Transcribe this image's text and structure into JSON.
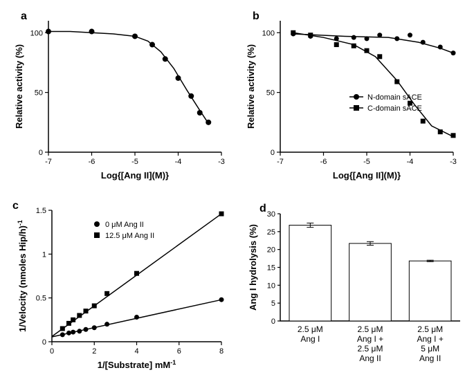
{
  "panel_a": {
    "letter": "a",
    "type": "scatter-line",
    "xlabel": "Log{[Ang II](M)}",
    "ylabel": "Relative activity (%)",
    "xlim": [
      -7,
      -3
    ],
    "ylim": [
      0,
      110
    ],
    "xticks": [
      -7,
      -6,
      -5,
      -4,
      -3
    ],
    "yticks": [
      0,
      50,
      100
    ],
    "series": [
      {
        "marker": "circle",
        "color": "#000000",
        "points": [
          [
            -7,
            101
          ],
          [
            -6,
            101
          ],
          [
            -5,
            97
          ],
          [
            -4.6,
            90
          ],
          [
            -4.3,
            78
          ],
          [
            -4.0,
            62
          ],
          [
            -3.7,
            47
          ],
          [
            -3.5,
            33
          ],
          [
            -3.3,
            25
          ]
        ]
      }
    ],
    "curve": [
      [
        -7,
        101
      ],
      [
        -6.5,
        101
      ],
      [
        -6,
        100
      ],
      [
        -5.5,
        99
      ],
      [
        -5,
        97
      ],
      [
        -4.7,
        93
      ],
      [
        -4.4,
        84
      ],
      [
        -4.1,
        70
      ],
      [
        -3.8,
        52
      ],
      [
        -3.5,
        35
      ],
      [
        -3.3,
        24
      ]
    ]
  },
  "panel_b": {
    "letter": "b",
    "type": "scatter-line",
    "xlabel": "Log{[Ang II](M)}",
    "ylabel": "Relative activity (%)",
    "xlim": [
      -7,
      -3
    ],
    "ylim": [
      0,
      110
    ],
    "xticks": [
      -7,
      -6,
      -5,
      -4,
      -3
    ],
    "yticks": [
      0,
      50,
      100
    ],
    "legend": [
      {
        "marker": "circle",
        "label": "N-domain sACE"
      },
      {
        "marker": "square",
        "label": "C-domain sACE"
      }
    ],
    "series_n": {
      "marker": "circle",
      "color": "#000000",
      "points": [
        [
          -6.7,
          99
        ],
        [
          -6.3,
          97
        ],
        [
          -5.7,
          95
        ],
        [
          -5.3,
          96
        ],
        [
          -5.0,
          95
        ],
        [
          -4.7,
          98
        ],
        [
          -4.3,
          95
        ],
        [
          -4.0,
          98
        ],
        [
          -3.7,
          92
        ],
        [
          -3.3,
          88
        ],
        [
          -3.0,
          83
        ]
      ]
    },
    "series_c": {
      "marker": "square",
      "color": "#000000",
      "points": [
        [
          -6.7,
          100
        ],
        [
          -6.3,
          98
        ],
        [
          -5.7,
          90
        ],
        [
          -5.3,
          89
        ],
        [
          -5.0,
          85
        ],
        [
          -4.7,
          80
        ],
        [
          -4.3,
          59
        ],
        [
          -4.0,
          41
        ],
        [
          -3.7,
          26
        ],
        [
          -3.3,
          17
        ],
        [
          -3.0,
          14
        ]
      ]
    },
    "curve_n": [
      [
        -6.7,
        99
      ],
      [
        -5.5,
        97
      ],
      [
        -4.5,
        96
      ],
      [
        -3.8,
        92
      ],
      [
        -3.3,
        87
      ],
      [
        -3.0,
        83
      ]
    ],
    "curve_c": [
      [
        -6.7,
        100
      ],
      [
        -6.0,
        96
      ],
      [
        -5.3,
        90
      ],
      [
        -4.8,
        80
      ],
      [
        -4.3,
        60
      ],
      [
        -3.9,
        40
      ],
      [
        -3.5,
        22
      ],
      [
        -3.0,
        13
      ]
    ]
  },
  "panel_c": {
    "letter": "c",
    "type": "scatter-line",
    "xlabel": "1/[Substrate] mM",
    "xlabel_sup": "-1",
    "ylabel": "1/Velocity (nmoles Hip/h)",
    "ylabel_sup": "-1",
    "xlim": [
      0,
      8
    ],
    "ylim": [
      0,
      1.5
    ],
    "xticks": [
      0,
      2,
      4,
      6,
      8
    ],
    "yticks": [
      0.0,
      0.5,
      1.0,
      1.5
    ],
    "legend": [
      {
        "marker": "circle",
        "label": "0 μM Ang II"
      },
      {
        "marker": "square",
        "label": "12.5 μM Ang II"
      }
    ],
    "series_0": {
      "marker": "circle",
      "color": "#000000",
      "points": [
        [
          0.5,
          0.08
        ],
        [
          0.8,
          0.1
        ],
        [
          1.0,
          0.11
        ],
        [
          1.3,
          0.12
        ],
        [
          1.6,
          0.14
        ],
        [
          2.0,
          0.16
        ],
        [
          2.6,
          0.2
        ],
        [
          4.0,
          0.28
        ],
        [
          8.0,
          0.48
        ]
      ]
    },
    "series_12": {
      "marker": "square",
      "color": "#000000",
      "points": [
        [
          0.5,
          0.15
        ],
        [
          0.8,
          0.21
        ],
        [
          1.0,
          0.25
        ],
        [
          1.3,
          0.3
        ],
        [
          1.6,
          0.35
        ],
        [
          2.0,
          0.41
        ],
        [
          2.6,
          0.55
        ],
        [
          4.0,
          0.78
        ],
        [
          8.0,
          1.46
        ]
      ]
    },
    "line_0": {
      "slope": 0.053,
      "intercept": 0.055
    },
    "line_12": {
      "slope": 0.175,
      "intercept": 0.06
    }
  },
  "panel_d": {
    "letter": "d",
    "type": "bar",
    "ylabel": "Ang I hydrolysis (%)",
    "ylim": [
      0,
      30
    ],
    "yticks": [
      0,
      5,
      10,
      15,
      20,
      25,
      30
    ],
    "bars": [
      {
        "label_lines": [
          "2.5 μM",
          "Ang I"
        ],
        "value": 26.8,
        "err": 0.6
      },
      {
        "label_lines": [
          "2.5 μM",
          "Ang I +",
          "2.5 μM",
          "Ang II"
        ],
        "value": 21.7,
        "err": 0.5
      },
      {
        "label_lines": [
          "2.5 μM",
          "Ang I +",
          "5 μM",
          "Ang II"
        ],
        "value": 16.8,
        "err": 0.2
      }
    ],
    "bar_fill": "#ffffff",
    "bar_stroke": "#000000"
  },
  "colors": {
    "fg": "#000000",
    "bg": "#ffffff"
  }
}
